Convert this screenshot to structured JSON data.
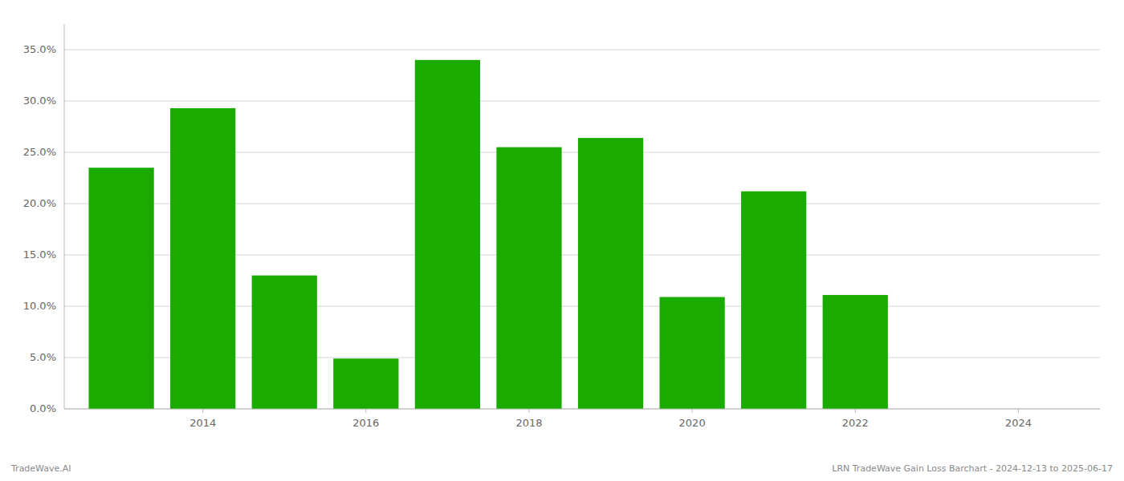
{
  "chart_data": {
    "type": "bar",
    "x": [
      2013,
      2014,
      2015,
      2016,
      2017,
      2018,
      2019,
      2020,
      2021,
      2022
    ],
    "values": [
      0.235,
      0.293,
      0.13,
      0.049,
      0.34,
      0.255,
      0.264,
      0.109,
      0.212,
      0.111
    ],
    "color": "#1aab00",
    "xlim": [
      2012.3,
      2025.0
    ],
    "xticks": [
      2014,
      2016,
      2018,
      2020,
      2022,
      2024
    ],
    "ylim": [
      0,
      0.375
    ],
    "yticks": [
      {
        "value": 0.0,
        "label": "0.0%"
      },
      {
        "value": 0.05,
        "label": "5.0%"
      },
      {
        "value": 0.1,
        "label": "10.0%"
      },
      {
        "value": 0.15,
        "label": "15.0%"
      },
      {
        "value": 0.2,
        "label": "20.0%"
      },
      {
        "value": 0.25,
        "label": "25.0%"
      },
      {
        "value": 0.3,
        "label": "30.0%"
      },
      {
        "value": 0.35,
        "label": "35.0%"
      }
    ],
    "grid": true,
    "annotations": [
      "TradeWave.AI",
      "LRN TradeWave Gain Loss Barchart - 2024-12-13 to 2025-06-17"
    ]
  }
}
